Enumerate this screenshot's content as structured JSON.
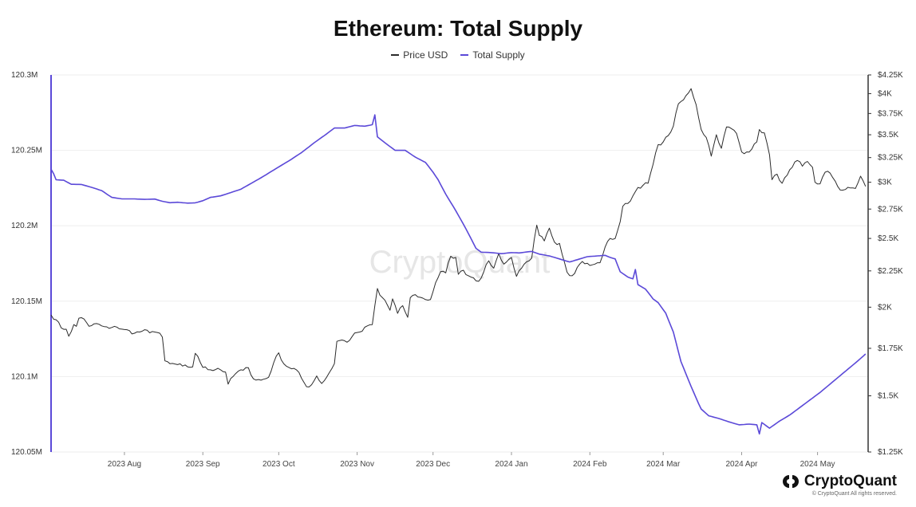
{
  "colors": {
    "price": "#2b2b2b",
    "supply": "#5b49d8",
    "grid": "#eeeeee",
    "axis": "#333333"
  },
  "watermark": "CryptoQuant",
  "brand": {
    "name": "CryptoQuant",
    "copyright": "© CryptoQuant All rights reserved.",
    "logo_icon": "cryptoquant-logo-icon"
  },
  "chart_data": {
    "type": "line",
    "title": "Ethereum: Total Supply",
    "legend_position": "top-center",
    "grid": true,
    "x_start": "2023-07-03",
    "x_end": "2024-05-21",
    "x_tick_dates": [
      "2023-08-01",
      "2023-09-01",
      "2023-10-01",
      "2023-11-01",
      "2023-12-01",
      "2024-01-01",
      "2024-02-01",
      "2024-03-01",
      "2024-04-01",
      "2024-05-01"
    ],
    "x_tick_labels": [
      "2023 Aug",
      "2023 Sep",
      "2023 Oct",
      "2023 Nov",
      "2023 Dec",
      "2024 Jan",
      "2024 Feb",
      "2024 Mar",
      "2024 Apr",
      "2024 May"
    ],
    "y_left": {
      "range": [
        120.05,
        120.3
      ],
      "ticks": [
        120.05,
        120.1,
        120.15,
        120.2,
        120.25,
        120.3
      ],
      "tick_labels": [
        "120.05M",
        "120.1M",
        "120.15M",
        "120.2M",
        "120.25M",
        "120.3M"
      ]
    },
    "y_right": {
      "scale": "log",
      "range": [
        1250,
        4250
      ],
      "ticks": [
        1250,
        1500,
        1750,
        2000,
        2250,
        2500,
        2750,
        3000,
        3250,
        3500,
        3750,
        4000,
        4250
      ],
      "tick_labels": [
        "$1.25K",
        "$1.5K",
        "$1.75K",
        "$2K",
        "$2.25K",
        "$2.5K",
        "$2.75K",
        "$3K",
        "$3.25K",
        "$3.5K",
        "$3.75K",
        "$4K",
        "$4.25K"
      ]
    },
    "series": [
      {
        "name": "Price USD",
        "axis": "right",
        "points": [
          [
            "2023-07-03",
            1950
          ],
          [
            "2023-07-05",
            1920
          ],
          [
            "2023-07-07",
            1870
          ],
          [
            "2023-07-09",
            1862
          ],
          [
            "2023-07-10",
            1820
          ],
          [
            "2023-07-12",
            1890
          ],
          [
            "2023-07-13",
            1880
          ],
          [
            "2023-07-14",
            1930
          ],
          [
            "2023-07-16",
            1925
          ],
          [
            "2023-07-18",
            1880
          ],
          [
            "2023-07-20",
            1895
          ],
          [
            "2023-07-23",
            1882
          ],
          [
            "2023-07-26",
            1867
          ],
          [
            "2023-07-29",
            1875
          ],
          [
            "2023-08-01",
            1860
          ],
          [
            "2023-08-05",
            1838
          ],
          [
            "2023-08-08",
            1850
          ],
          [
            "2023-08-12",
            1848
          ],
          [
            "2023-08-14",
            1842
          ],
          [
            "2023-08-16",
            1815
          ],
          [
            "2023-08-17",
            1680
          ],
          [
            "2023-08-19",
            1665
          ],
          [
            "2023-08-22",
            1660
          ],
          [
            "2023-08-24",
            1652
          ],
          [
            "2023-08-26",
            1648
          ],
          [
            "2023-08-28",
            1648
          ],
          [
            "2023-08-29",
            1722
          ],
          [
            "2023-08-30",
            1705
          ],
          [
            "2023-09-01",
            1645
          ],
          [
            "2023-09-04",
            1632
          ],
          [
            "2023-09-07",
            1640
          ],
          [
            "2023-09-10",
            1620
          ],
          [
            "2023-09-11",
            1558
          ],
          [
            "2023-09-13",
            1598
          ],
          [
            "2023-09-15",
            1625
          ],
          [
            "2023-09-17",
            1630
          ],
          [
            "2023-09-19",
            1643
          ],
          [
            "2023-09-21",
            1585
          ],
          [
            "2023-09-24",
            1578
          ],
          [
            "2023-09-27",
            1593
          ],
          [
            "2023-09-29",
            1670
          ],
          [
            "2023-10-01",
            1725
          ],
          [
            "2023-10-03",
            1664
          ],
          [
            "2023-10-05",
            1645
          ],
          [
            "2023-10-08",
            1632
          ],
          [
            "2023-10-10",
            1588
          ],
          [
            "2023-10-12",
            1545
          ],
          [
            "2023-10-14",
            1555
          ],
          [
            "2023-10-16",
            1600
          ],
          [
            "2023-10-18",
            1561
          ],
          [
            "2023-10-20",
            1595
          ],
          [
            "2023-10-23",
            1665
          ],
          [
            "2023-10-24",
            1790
          ],
          [
            "2023-10-26",
            1798
          ],
          [
            "2023-10-28",
            1785
          ],
          [
            "2023-10-30",
            1818
          ],
          [
            "2023-11-01",
            1842
          ],
          [
            "2023-11-03",
            1850
          ],
          [
            "2023-11-05",
            1882
          ],
          [
            "2023-11-07",
            1890
          ],
          [
            "2023-11-09",
            2125
          ],
          [
            "2023-11-10",
            2080
          ],
          [
            "2023-11-12",
            2045
          ],
          [
            "2023-11-14",
            1980
          ],
          [
            "2023-11-15",
            2055
          ],
          [
            "2023-11-17",
            1960
          ],
          [
            "2023-11-19",
            2010
          ],
          [
            "2023-11-21",
            1935
          ],
          [
            "2023-11-22",
            2063
          ],
          [
            "2023-11-24",
            2083
          ],
          [
            "2023-11-26",
            2065
          ],
          [
            "2023-11-28",
            2050
          ],
          [
            "2023-11-30",
            2050
          ],
          [
            "2023-12-02",
            2165
          ],
          [
            "2023-12-04",
            2245
          ],
          [
            "2023-12-06",
            2235
          ],
          [
            "2023-12-08",
            2360
          ],
          [
            "2023-12-10",
            2350
          ],
          [
            "2023-12-11",
            2225
          ],
          [
            "2023-12-13",
            2255
          ],
          [
            "2023-12-15",
            2215
          ],
          [
            "2023-12-17",
            2200
          ],
          [
            "2023-12-19",
            2175
          ],
          [
            "2023-12-21",
            2240
          ],
          [
            "2023-12-23",
            2325
          ],
          [
            "2023-12-25",
            2270
          ],
          [
            "2023-12-27",
            2380
          ],
          [
            "2023-12-29",
            2300
          ],
          [
            "2024-01-01",
            2350
          ],
          [
            "2024-01-03",
            2210
          ],
          [
            "2024-01-05",
            2270
          ],
          [
            "2024-01-08",
            2325
          ],
          [
            "2024-01-09",
            2345
          ],
          [
            "2024-01-11",
            2610
          ],
          [
            "2024-01-12",
            2525
          ],
          [
            "2024-01-14",
            2480
          ],
          [
            "2024-01-16",
            2585
          ],
          [
            "2024-01-18",
            2470
          ],
          [
            "2024-01-20",
            2460
          ],
          [
            "2024-01-22",
            2310
          ],
          [
            "2024-01-23",
            2240
          ],
          [
            "2024-01-25",
            2215
          ],
          [
            "2024-01-27",
            2275
          ],
          [
            "2024-01-29",
            2320
          ],
          [
            "2024-02-01",
            2290
          ],
          [
            "2024-02-03",
            2300
          ],
          [
            "2024-02-05",
            2310
          ],
          [
            "2024-02-07",
            2430
          ],
          [
            "2024-02-09",
            2500
          ],
          [
            "2024-02-11",
            2500
          ],
          [
            "2024-02-13",
            2640
          ],
          [
            "2024-02-14",
            2775
          ],
          [
            "2024-02-16",
            2800
          ],
          [
            "2024-02-18",
            2870
          ],
          [
            "2024-02-20",
            2950
          ],
          [
            "2024-02-22",
            2970
          ],
          [
            "2024-02-24",
            2990
          ],
          [
            "2024-02-26",
            3180
          ],
          [
            "2024-02-28",
            3390
          ],
          [
            "2024-03-01",
            3420
          ],
          [
            "2024-03-03",
            3490
          ],
          [
            "2024-03-05",
            3600
          ],
          [
            "2024-03-07",
            3870
          ],
          [
            "2024-03-09",
            3920
          ],
          [
            "2024-03-11",
            4010
          ],
          [
            "2024-03-12",
            4065
          ],
          [
            "2024-03-14",
            3860
          ],
          [
            "2024-03-16",
            3560
          ],
          [
            "2024-03-18",
            3470
          ],
          [
            "2024-03-19",
            3380
          ],
          [
            "2024-03-20",
            3265
          ],
          [
            "2024-03-22",
            3500
          ],
          [
            "2024-03-24",
            3350
          ],
          [
            "2024-03-26",
            3590
          ],
          [
            "2024-03-28",
            3570
          ],
          [
            "2024-03-30",
            3515
          ],
          [
            "2024-04-01",
            3310
          ],
          [
            "2024-04-03",
            3310
          ],
          [
            "2024-04-05",
            3340
          ],
          [
            "2024-04-07",
            3420
          ],
          [
            "2024-04-08",
            3560
          ],
          [
            "2024-04-10",
            3520
          ],
          [
            "2024-04-12",
            3280
          ],
          [
            "2024-04-13",
            3025
          ],
          [
            "2024-04-15",
            3080
          ],
          [
            "2024-04-17",
            2990
          ],
          [
            "2024-04-19",
            3070
          ],
          [
            "2024-04-21",
            3150
          ],
          [
            "2024-04-23",
            3220
          ],
          [
            "2024-04-25",
            3160
          ],
          [
            "2024-04-27",
            3210
          ],
          [
            "2024-04-29",
            3150
          ],
          [
            "2024-04-30",
            3000
          ],
          [
            "2024-05-02",
            2985
          ],
          [
            "2024-05-04",
            3100
          ],
          [
            "2024-05-06",
            3090
          ],
          [
            "2024-05-08",
            3010
          ],
          [
            "2024-05-10",
            2925
          ],
          [
            "2024-05-12",
            2930
          ],
          [
            "2024-05-14",
            2945
          ],
          [
            "2024-05-16",
            2940
          ],
          [
            "2024-05-18",
            3060
          ],
          [
            "2024-05-20",
            2960
          ]
        ]
      },
      {
        "name": "Total Supply",
        "axis": "left",
        "points": [
          [
            "2023-07-03",
            120.2375
          ],
          [
            "2023-07-04",
            120.2345
          ],
          [
            "2023-07-05",
            120.2305
          ],
          [
            "2023-07-08",
            120.2302
          ],
          [
            "2023-07-11",
            120.2275
          ],
          [
            "2023-07-15",
            120.2274
          ],
          [
            "2023-07-19",
            120.2255
          ],
          [
            "2023-07-23",
            120.2233
          ],
          [
            "2023-07-27",
            120.2188
          ],
          [
            "2023-07-31",
            120.2178
          ],
          [
            "2023-08-05",
            120.2178
          ],
          [
            "2023-08-09",
            120.2175
          ],
          [
            "2023-08-13",
            120.2177
          ],
          [
            "2023-08-16",
            120.2162
          ],
          [
            "2023-08-19",
            120.2153
          ],
          [
            "2023-08-22",
            120.2156
          ],
          [
            "2023-08-26",
            120.215
          ],
          [
            "2023-08-29",
            120.2152
          ],
          [
            "2023-09-01",
            120.2166
          ],
          [
            "2023-09-04",
            120.2188
          ],
          [
            "2023-09-08",
            120.2198
          ],
          [
            "2023-09-12",
            120.222
          ],
          [
            "2023-09-16",
            120.2242
          ],
          [
            "2023-09-20",
            120.228
          ],
          [
            "2023-09-25",
            120.2328
          ],
          [
            "2023-09-30",
            120.238
          ],
          [
            "2023-10-05",
            120.243
          ],
          [
            "2023-10-10",
            120.2485
          ],
          [
            "2023-10-15",
            120.255
          ],
          [
            "2023-10-20",
            120.261
          ],
          [
            "2023-10-23",
            120.2648
          ],
          [
            "2023-10-27",
            120.2648
          ],
          [
            "2023-10-31",
            120.2665
          ],
          [
            "2023-11-04",
            120.266
          ],
          [
            "2023-11-07",
            120.267
          ],
          [
            "2023-11-08",
            120.2735
          ],
          [
            "2023-11-09",
            120.259
          ],
          [
            "2023-11-12",
            120.255
          ],
          [
            "2023-11-16",
            120.25
          ],
          [
            "2023-11-20",
            120.25
          ],
          [
            "2023-11-24",
            120.2455
          ],
          [
            "2023-11-28",
            120.242
          ],
          [
            "2023-12-01",
            120.2355
          ],
          [
            "2023-12-03",
            120.2305
          ],
          [
            "2023-12-06",
            120.221
          ],
          [
            "2023-12-10",
            120.21
          ],
          [
            "2023-12-14",
            120.198
          ],
          [
            "2023-12-18",
            120.185
          ],
          [
            "2023-12-20",
            120.1825
          ],
          [
            "2023-12-24",
            120.1822
          ],
          [
            "2023-12-28",
            120.1815
          ],
          [
            "2024-01-01",
            120.1822
          ],
          [
            "2024-01-04",
            120.182
          ],
          [
            "2024-01-09",
            120.183
          ],
          [
            "2024-01-12",
            120.1812
          ],
          [
            "2024-01-16",
            120.18
          ],
          [
            "2024-01-20",
            120.178
          ],
          [
            "2024-01-24",
            120.176
          ],
          [
            "2024-01-27",
            120.1775
          ],
          [
            "2024-01-31",
            120.1795
          ],
          [
            "2024-02-04",
            120.18
          ],
          [
            "2024-02-07",
            120.1804
          ],
          [
            "2024-02-09",
            120.179
          ],
          [
            "2024-02-11",
            120.178
          ],
          [
            "2024-02-13",
            120.1695
          ],
          [
            "2024-02-16",
            120.166
          ],
          [
            "2024-02-18",
            120.1648
          ],
          [
            "2024-02-19",
            120.171
          ],
          [
            "2024-02-20",
            120.161
          ],
          [
            "2024-02-23",
            120.158
          ],
          [
            "2024-02-26",
            120.1515
          ],
          [
            "2024-02-28",
            120.149
          ],
          [
            "2024-03-02",
            120.142
          ],
          [
            "2024-03-05",
            120.1295
          ],
          [
            "2024-03-08",
            120.11
          ],
          [
            "2024-03-12",
            120.0935
          ],
          [
            "2024-03-15",
            120.082
          ],
          [
            "2024-03-16",
            120.0785
          ],
          [
            "2024-03-19",
            120.074
          ],
          [
            "2024-03-23",
            120.0722
          ],
          [
            "2024-03-27",
            120.07
          ],
          [
            "2024-03-31",
            120.068
          ],
          [
            "2024-04-04",
            120.0685
          ],
          [
            "2024-04-07",
            120.068
          ],
          [
            "2024-04-08",
            120.062
          ],
          [
            "2024-04-09",
            120.0695
          ],
          [
            "2024-04-12",
            120.0658
          ],
          [
            "2024-04-16",
            120.0705
          ],
          [
            "2024-04-20",
            120.0745
          ],
          [
            "2024-04-24",
            120.0795
          ],
          [
            "2024-04-28",
            120.0845
          ],
          [
            "2024-05-02",
            120.0895
          ],
          [
            "2024-05-07",
            120.0965
          ],
          [
            "2024-05-12",
            120.1035
          ],
          [
            "2024-05-17",
            120.1105
          ],
          [
            "2024-05-20",
            120.115
          ]
        ]
      }
    ]
  }
}
